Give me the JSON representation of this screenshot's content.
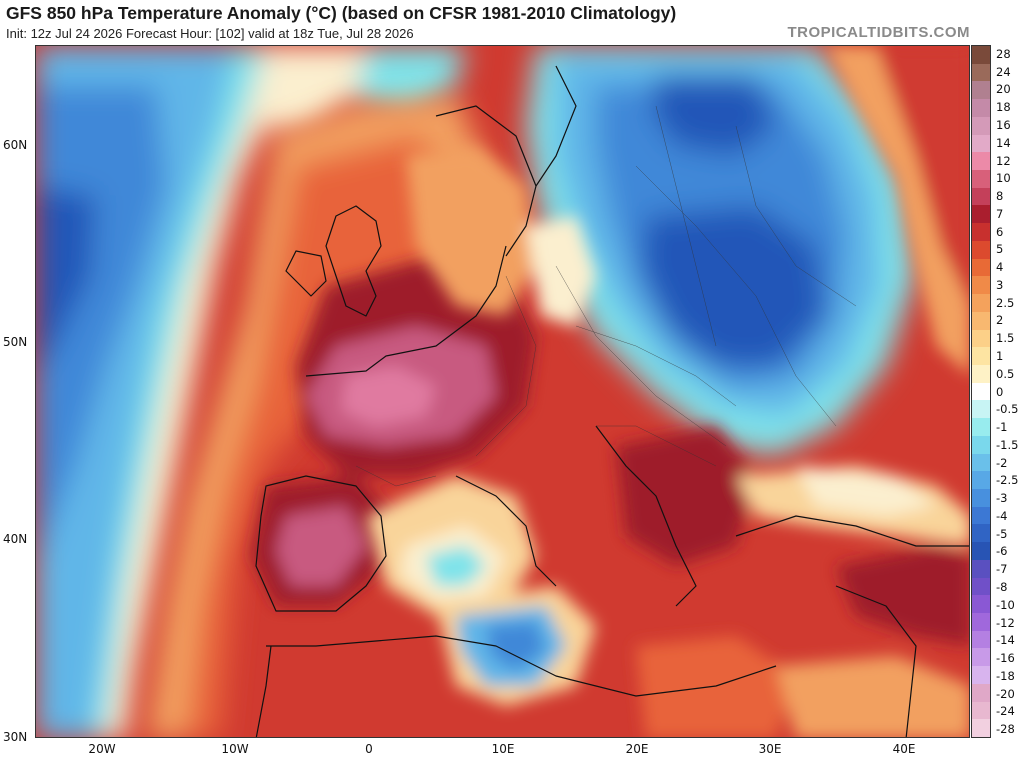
{
  "header": {
    "title": "GFS 850 hPa Temperature Anomaly (°C) (based on CFSR 1981-2010 Climatology)",
    "subtitle": "Init: 12z Jul 24 2026   Forecast Hour: [102]   valid at 18z Tue, Jul 28 2026",
    "brand": "TROPICALTIDBITS.COM"
  },
  "map": {
    "lat_labels": [
      "60N",
      "50N",
      "40N",
      "30N"
    ],
    "lon_labels": [
      "20W",
      "10W",
      "0",
      "10E",
      "20E",
      "30E",
      "40E"
    ],
    "colors": {
      "deep_red": "#9e1a2a",
      "red": "#d03a30",
      "orange_red": "#e8643a",
      "orange": "#f2a060",
      "light_orange": "#f9d49a",
      "pale": "#fbefcf",
      "pink": "#c85a80",
      "light_pink": "#e07aa0",
      "cyan": "#7fe3ea",
      "light_blue": "#61b6e8",
      "blue": "#3f88d8",
      "dark_blue": "#2456b8"
    }
  },
  "legend": {
    "labels": [
      "28",
      "24",
      "20",
      "18",
      "16",
      "14",
      "12",
      "10",
      "8",
      "7",
      "6",
      "5",
      "4",
      "3",
      "2.5",
      "2",
      "1.5",
      "1",
      "0.5",
      "0",
      "-0.5",
      "-1",
      "-1.5",
      "-2",
      "-2.5",
      "-3",
      "-4",
      "-5",
      "-6",
      "-7",
      "-8",
      "-10",
      "-12",
      "-14",
      "-16",
      "-18",
      "-20",
      "-24",
      "-28"
    ],
    "colors": [
      "#7a4a3a",
      "#9a6a5a",
      "#b08090",
      "#c48aa8",
      "#d49ab8",
      "#e2aac8",
      "#ec8aa8",
      "#d8607a",
      "#c4405a",
      "#aa1e2e",
      "#c8302e",
      "#dc4a2e",
      "#e86a36",
      "#f08a48",
      "#f4a25c",
      "#f8b870",
      "#fcd088",
      "#fde4a2",
      "#fef2c6",
      "#ffffff",
      "#c8f4f4",
      "#98ecee",
      "#7ad8ec",
      "#6ac0ea",
      "#58a8e6",
      "#4890de",
      "#3c78d4",
      "#3064c4",
      "#2854b4",
      "#5a50c0",
      "#7050c8",
      "#8a58d4",
      "#a068dc",
      "#b480e2",
      "#c89ae8",
      "#d8b4ee",
      "#e0a8c8",
      "#e8b8d0",
      "#f2d0e0"
    ]
  }
}
